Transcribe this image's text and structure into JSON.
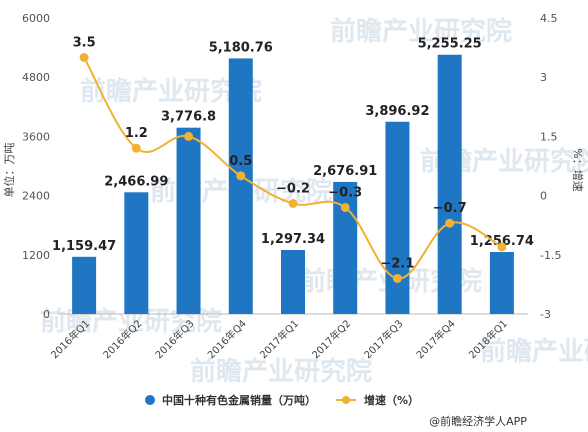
{
  "chart_data": {
    "type": "bar+line",
    "categories": [
      "2016年Q1",
      "2016年Q2",
      "2016年Q3",
      "2016年Q4",
      "2017年Q1",
      "2017年Q2",
      "2017年Q3",
      "2017年Q4",
      "2018年Q1"
    ],
    "series": [
      {
        "name": "中国十种有色金属销量（万吨）",
        "type": "bar",
        "axis": "left",
        "color": "#1f77c4",
        "values": [
          1159.47,
          2466.99,
          3776.8,
          5180.76,
          1297.34,
          2676.91,
          3896.92,
          5255.25,
          1256.74
        ],
        "labels": [
          "1,159.47",
          "2,466.99",
          "3,776.8",
          "5,180.76",
          "1,297.34",
          "2,676.91",
          "3,896.92",
          "5,255.25",
          "1,256.74"
        ]
      },
      {
        "name": "增速（%）",
        "type": "line",
        "axis": "right",
        "color": "#f0b232",
        "values": [
          3.5,
          1.2,
          1.5,
          0.5,
          -0.2,
          -0.3,
          -2.1,
          -0.7,
          -1.3
        ],
        "labels": [
          "3.5",
          "1.2",
          "",
          "0.5",
          "−0.2",
          "−0.3",
          "−2.1",
          "−0.7",
          ""
        ]
      }
    ],
    "y_left": {
      "label": "单位：万吨",
      "min": 0,
      "max": 6000,
      "ticks": [
        "0",
        "1200",
        "2400",
        "3600",
        "4800",
        "6000"
      ],
      "tick_values": [
        0,
        1200,
        2400,
        3600,
        4800,
        6000
      ]
    },
    "y_right": {
      "label": "%：增速",
      "min": -3,
      "max": 4.5,
      "ticks": [
        "-3",
        "-1.5",
        "0",
        "1.5",
        "3",
        "4.5"
      ],
      "tick_values": [
        -3,
        -1.5,
        0,
        1.5,
        3,
        4.5
      ]
    },
    "legend_position": "bottom",
    "grid": false
  },
  "watermark": "前瞻产业研究院",
  "source": "@前瞻经济学人APP"
}
